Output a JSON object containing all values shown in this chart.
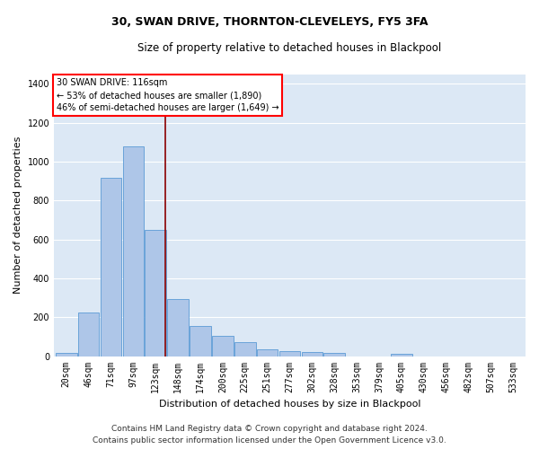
{
  "title": "30, SWAN DRIVE, THORNTON-CLEVELEYS, FY5 3FA",
  "subtitle": "Size of property relative to detached houses in Blackpool",
  "xlabel": "Distribution of detached houses by size in Blackpool",
  "ylabel": "Number of detached properties",
  "footer1": "Contains HM Land Registry data © Crown copyright and database right 2024.",
  "footer2": "Contains public sector information licensed under the Open Government Licence v3.0.",
  "annotation_line1": "30 SWAN DRIVE: 116sqm",
  "annotation_line2": "← 53% of detached houses are smaller (1,890)",
  "annotation_line3": "46% of semi-detached houses are larger (1,649) →",
  "bar_values": [
    15,
    225,
    915,
    1080,
    650,
    295,
    155,
    105,
    70,
    35,
    25,
    20,
    15,
    0,
    0,
    10,
    0,
    0,
    0,
    0,
    0
  ],
  "categories": [
    "20sqm",
    "46sqm",
    "71sqm",
    "97sqm",
    "123sqm",
    "148sqm",
    "174sqm",
    "200sqm",
    "225sqm",
    "251sqm",
    "277sqm",
    "302sqm",
    "328sqm",
    "353sqm",
    "379sqm",
    "405sqm",
    "430sqm",
    "456sqm",
    "482sqm",
    "507sqm",
    "533sqm"
  ],
  "bar_color": "#aec6e8",
  "bar_edge_color": "#5b9bd5",
  "background_color": "#dce8f5",
  "grid_color": "#ffffff",
  "red_line_x": 4.45,
  "ylim": [
    0,
    1450
  ],
  "yticks": [
    0,
    200,
    400,
    600,
    800,
    1000,
    1200,
    1400
  ],
  "title_fontsize": 9,
  "subtitle_fontsize": 8.5,
  "axis_label_fontsize": 8,
  "tick_fontsize": 7,
  "footer_fontsize": 6.5,
  "annotation_fontsize": 7
}
